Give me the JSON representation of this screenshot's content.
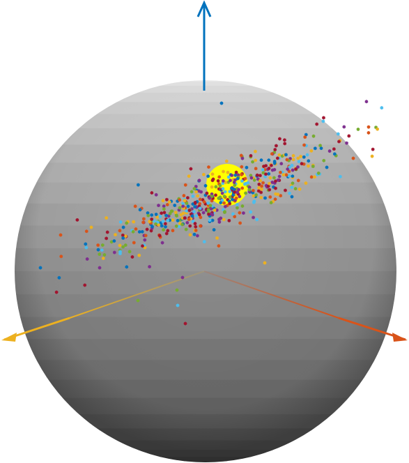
{
  "scene": {
    "axis_colors": {
      "z_axis": "#0072BD",
      "x_axis": "#EDB120",
      "y_axis": "#D95319"
    },
    "sphere_colors": {
      "light": "#f4f4f4",
      "dark": "#3a3a3a",
      "band_count": 26
    },
    "sun_color": "#FFFF00",
    "marker_colors": [
      "#0072BD",
      "#D95319",
      "#EDB120",
      "#7E2F8E",
      "#77AC30",
      "#4DBEEE",
      "#A2142F"
    ]
  }
}
